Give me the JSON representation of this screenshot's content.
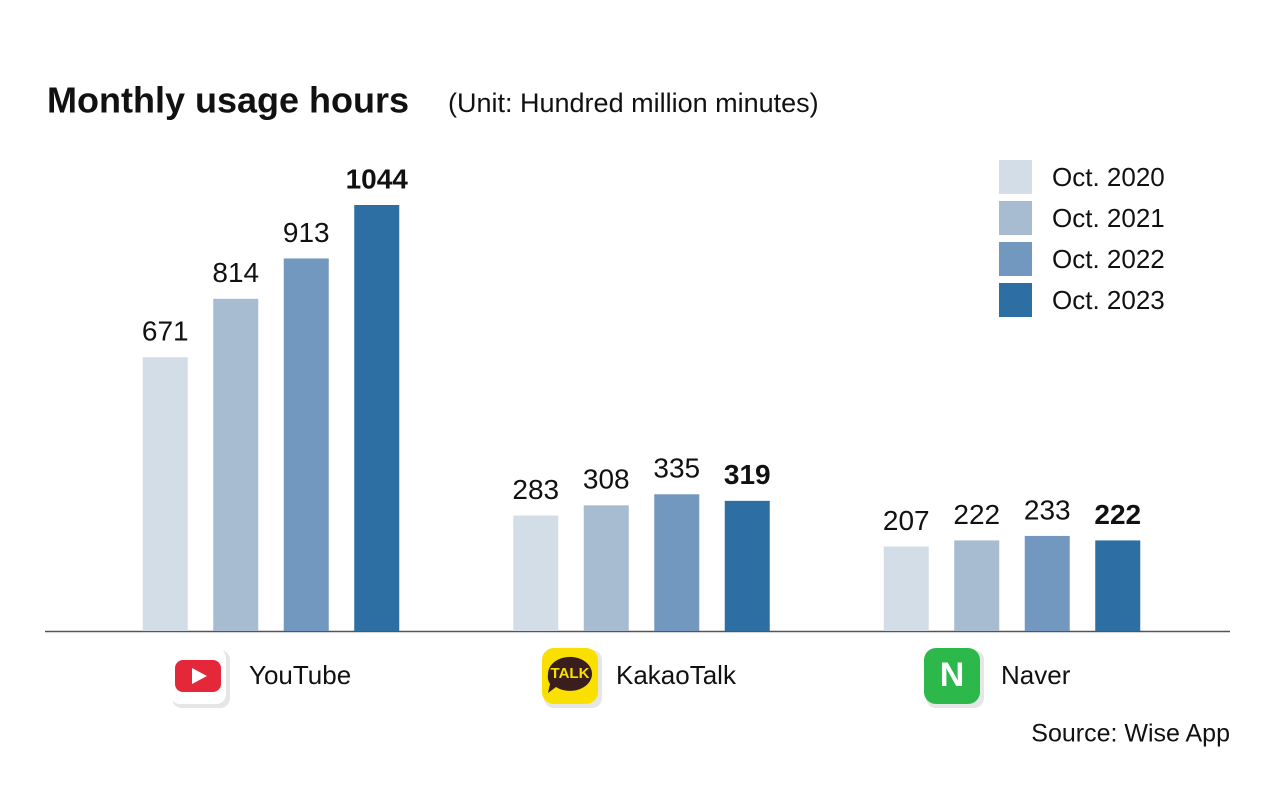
{
  "chart_data": {
    "type": "bar",
    "title": "Monthly usage hours",
    "subtitle": "(Unit: Hundred million minutes)",
    "source": "Source: Wise App",
    "categories": [
      "YouTube",
      "KakaoTalk",
      "Naver"
    ],
    "icon_labels": [
      null,
      "TALK",
      "N"
    ],
    "series": [
      {
        "name": "Oct. 2020",
        "color": "#d3dde8",
        "values": [
          671,
          283,
          207
        ]
      },
      {
        "name": "Oct. 2021",
        "color": "#a7bbd1",
        "values": [
          814,
          308,
          222
        ]
      },
      {
        "name": "Oct. 2022",
        "color": "#7298bf",
        "values": [
          913,
          335,
          233
        ]
      },
      {
        "name": "Oct. 2023",
        "color": "#2e6fa3",
        "values": [
          1044,
          319,
          222
        ]
      }
    ],
    "legend": "top-right"
  }
}
